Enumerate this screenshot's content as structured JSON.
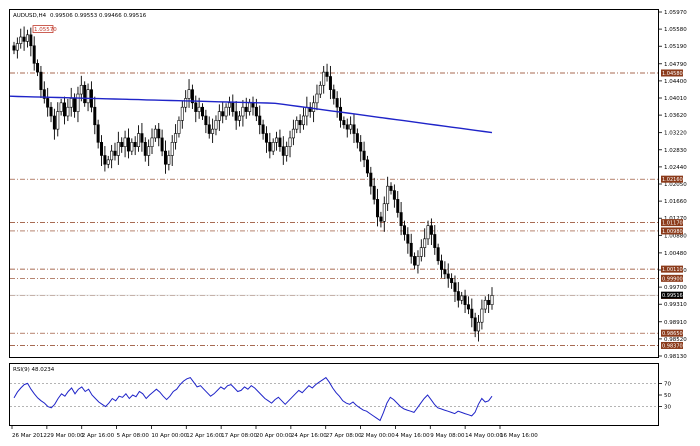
{
  "header": {
    "symbol": "AUDUSD,H4",
    "ohlc": "0.99506 0.99553 0.99466 0.99516"
  },
  "rsi_header": {
    "label": "RSI(9) 48.0234"
  },
  "colors": {
    "candle": "#000000",
    "ma_line": "#1f24c8",
    "rsi_line": "#1f24c8",
    "level_line": "#8b3a1a",
    "level_tag": "#8b3a1a",
    "high_tag_border": "#c0392b",
    "grid_dash": "#888888"
  },
  "chart_data": [
    {
      "type": "candlestick",
      "title": "",
      "symbol": "AUDUSD,H4",
      "ylim": [
        0.9813,
        1.0597
      ],
      "price_ticks": [
        "1.05970",
        "1.05580",
        "1.05190",
        "1.04790",
        "1.04400",
        "1.04010",
        "1.03620",
        "1.03220",
        "1.02830",
        "1.02440",
        "1.02050",
        "1.01660",
        "1.01270",
        "1.00880",
        "1.00480",
        "1.00090",
        "0.99700",
        "0.99310",
        "0.98910",
        "0.98520",
        "0.98130"
      ],
      "x_ticks": [
        "26 Mar 2012",
        "29 Mar 00:00",
        "2 Apr 16:00",
        "5 Apr 08:00",
        "10 Apr 00:00",
        "12 Apr 16:00",
        "17 Apr 08:00",
        "20 Apr 00:00",
        "24 Apr 16:00",
        "27 Apr 08:00",
        "2 May 00:00",
        "4 May 16:00",
        "9 May 08:00",
        "14 May 00:00",
        "16 May 16:00"
      ],
      "high_marker": "1.05570",
      "level_tags": [
        "1.04580",
        "1.02160",
        "1.01170",
        "1.00980",
        "1.00110",
        "0.99900",
        "0.99510",
        "0.98650",
        "0.98370"
      ],
      "current_price": "0.99516",
      "closes": [
        1.051,
        1.0525,
        1.054,
        1.053,
        1.0545,
        1.052,
        1.048,
        1.046,
        1.042,
        1.04,
        1.038,
        1.036,
        1.033,
        1.037,
        1.039,
        1.036,
        1.038,
        1.04,
        1.037,
        1.041,
        1.043,
        1.039,
        1.042,
        1.038,
        1.034,
        1.03,
        1.027,
        1.025,
        1.026,
        1.028,
        1.027,
        1.03,
        1.029,
        1.031,
        1.028,
        1.03,
        1.029,
        1.032,
        1.03,
        1.027,
        1.029,
        1.031,
        1.033,
        1.031,
        1.028,
        1.025,
        1.027,
        1.03,
        1.032,
        1.035,
        1.038,
        1.04,
        1.042,
        1.039,
        1.037,
        1.038,
        1.036,
        1.034,
        1.032,
        1.033,
        1.035,
        1.037,
        1.036,
        1.038,
        1.039,
        1.037,
        1.035,
        1.036,
        1.038,
        1.037,
        1.039,
        1.038,
        1.036,
        1.034,
        1.032,
        1.03,
        1.028,
        1.03,
        1.031,
        1.029,
        1.027,
        1.029,
        1.031,
        1.033,
        1.035,
        1.034,
        1.036,
        1.038,
        1.037,
        1.039,
        1.041,
        1.043,
        1.046,
        1.045,
        1.042,
        1.04,
        1.038,
        1.035,
        1.034,
        1.033,
        1.034,
        1.032,
        1.03,
        1.028,
        1.026,
        1.023,
        1.02,
        1.017,
        1.013,
        1.012,
        1.016,
        1.02,
        1.019,
        1.017,
        1.014,
        1.011,
        1.009,
        1.007,
        1.004,
        1.002,
        1.004,
        1.006,
        1.008,
        1.011,
        1.009,
        1.006,
        1.003,
        1.001,
        1.0,
        0.999,
        0.998,
        0.996,
        0.994,
        0.995,
        0.993,
        0.992,
        0.99,
        0.987,
        0.989,
        0.992,
        0.994,
        0.993,
        0.9951
      ],
      "ma_start": 1.0405,
      "ma_end": 1.0322
    },
    {
      "type": "line",
      "title": "",
      "indicator": "RSI(9) 48.0234",
      "ylim": [
        0,
        100
      ],
      "ticks": [
        "70",
        "50",
        "30"
      ],
      "levels": [
        70,
        30
      ],
      "values": [
        45,
        55,
        62,
        68,
        70,
        60,
        52,
        45,
        40,
        36,
        30,
        28,
        34,
        44,
        52,
        48,
        56,
        62,
        52,
        60,
        64,
        56,
        60,
        50,
        44,
        38,
        34,
        30,
        36,
        44,
        40,
        48,
        46,
        52,
        44,
        50,
        47,
        56,
        52,
        44,
        50,
        55,
        60,
        55,
        48,
        42,
        48,
        56,
        60,
        68,
        74,
        78,
        80,
        72,
        64,
        66,
        60,
        54,
        48,
        52,
        58,
        64,
        60,
        66,
        68,
        62,
        56,
        58,
        64,
        60,
        66,
        62,
        56,
        50,
        44,
        40,
        36,
        42,
        46,
        40,
        34,
        40,
        46,
        52,
        58,
        54,
        60,
        66,
        62,
        68,
        72,
        76,
        80,
        72,
        62,
        54,
        48,
        40,
        36,
        34,
        38,
        32,
        28,
        24,
        22,
        18,
        14,
        10,
        6,
        20,
        36,
        46,
        42,
        36,
        30,
        26,
        24,
        22,
        20,
        28,
        36,
        44,
        50,
        42,
        34,
        28,
        26,
        24,
        22,
        20,
        18,
        22,
        20,
        18,
        16,
        14,
        20,
        34,
        44,
        38,
        40,
        48
      ]
    }
  ]
}
